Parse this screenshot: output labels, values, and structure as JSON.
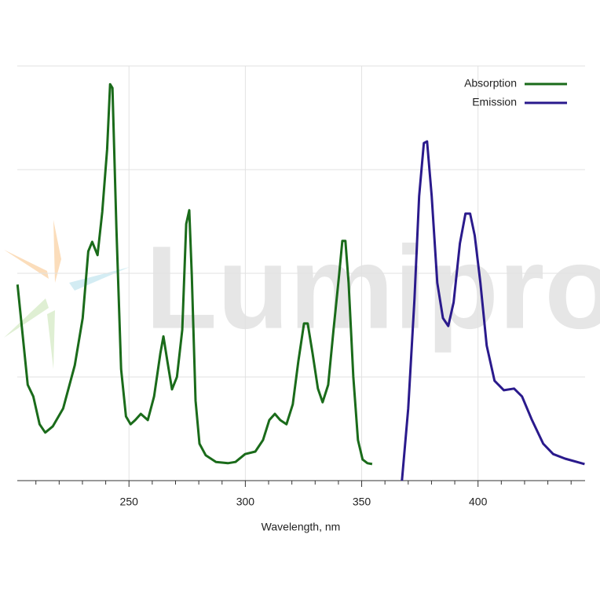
{
  "watermark": "Lumiprobe",
  "chart_data": {
    "type": "line",
    "xlabel": "Wavelength, nm",
    "xlim": [
      202,
      446
    ],
    "ylim": [
      0,
      1
    ],
    "xticks": [
      250,
      300,
      350,
      400
    ],
    "xminorticks": [
      210,
      220,
      230,
      240,
      260,
      270,
      280,
      290,
      310,
      320,
      330,
      340,
      360,
      370,
      380,
      390,
      410,
      420,
      430,
      440
    ],
    "ygridlines": [
      0.25,
      0.5,
      0.75,
      1
    ],
    "grid": true,
    "legend": "top-right",
    "series": [
      {
        "name": "Absorption",
        "color": "#1a6b1a",
        "x": [
          202.1,
          206.5,
          208.9,
          211.6,
          214.0,
          217.3,
          221.7,
          226.7,
          230.1,
          232.5,
          234.2,
          236.5,
          238.5,
          240.6,
          241.9,
          242.9,
          244.6,
          246.6,
          248.7,
          250.7,
          252.7,
          255.1,
          258.1,
          260.8,
          263.5,
          264.8,
          266.5,
          268.5,
          270.6,
          272.9,
          274.6,
          275.9,
          277.0,
          278.6,
          280.3,
          283.0,
          287.4,
          292.5,
          295.8,
          299.9,
          304.3,
          307.6,
          310.3,
          312.7,
          315.0,
          317.7,
          320.4,
          322.8,
          325.2,
          326.8,
          328.9,
          331.2,
          333.2,
          335.6,
          337.9,
          340.3,
          341.7,
          343.0,
          344.4,
          346.4,
          348.4,
          350.4,
          352.5,
          354.5
        ],
        "values": [
          0.473,
          0.231,
          0.203,
          0.136,
          0.116,
          0.131,
          0.174,
          0.278,
          0.392,
          0.553,
          0.576,
          0.544,
          0.648,
          0.799,
          0.956,
          0.947,
          0.61,
          0.269,
          0.155,
          0.136,
          0.146,
          0.161,
          0.146,
          0.203,
          0.307,
          0.348,
          0.288,
          0.22,
          0.25,
          0.364,
          0.619,
          0.652,
          0.496,
          0.193,
          0.089,
          0.061,
          0.045,
          0.042,
          0.045,
          0.064,
          0.07,
          0.098,
          0.146,
          0.161,
          0.146,
          0.136,
          0.184,
          0.288,
          0.379,
          0.379,
          0.307,
          0.222,
          0.189,
          0.231,
          0.364,
          0.496,
          0.578,
          0.578,
          0.477,
          0.25,
          0.098,
          0.051,
          0.042,
          0.04
        ]
      },
      {
        "name": "Emission",
        "color": "#2a1a8c",
        "x": [
          367.3,
          370.0,
          372.7,
          374.7,
          376.7,
          378.1,
          380.1,
          382.5,
          384.9,
          387.2,
          389.5,
          392.2,
          394.6,
          396.6,
          398.6,
          401.0,
          403.7,
          407.1,
          411.1,
          415.5,
          418.9,
          423.2,
          428.0,
          432.3,
          437.4,
          445.8
        ],
        "values": [
          0,
          0.174,
          0.439,
          0.686,
          0.814,
          0.818,
          0.686,
          0.477,
          0.392,
          0.373,
          0.43,
          0.572,
          0.644,
          0.644,
          0.591,
          0.477,
          0.326,
          0.241,
          0.218,
          0.222,
          0.203,
          0.146,
          0.089,
          0.064,
          0.053,
          0.04
        ]
      }
    ]
  }
}
